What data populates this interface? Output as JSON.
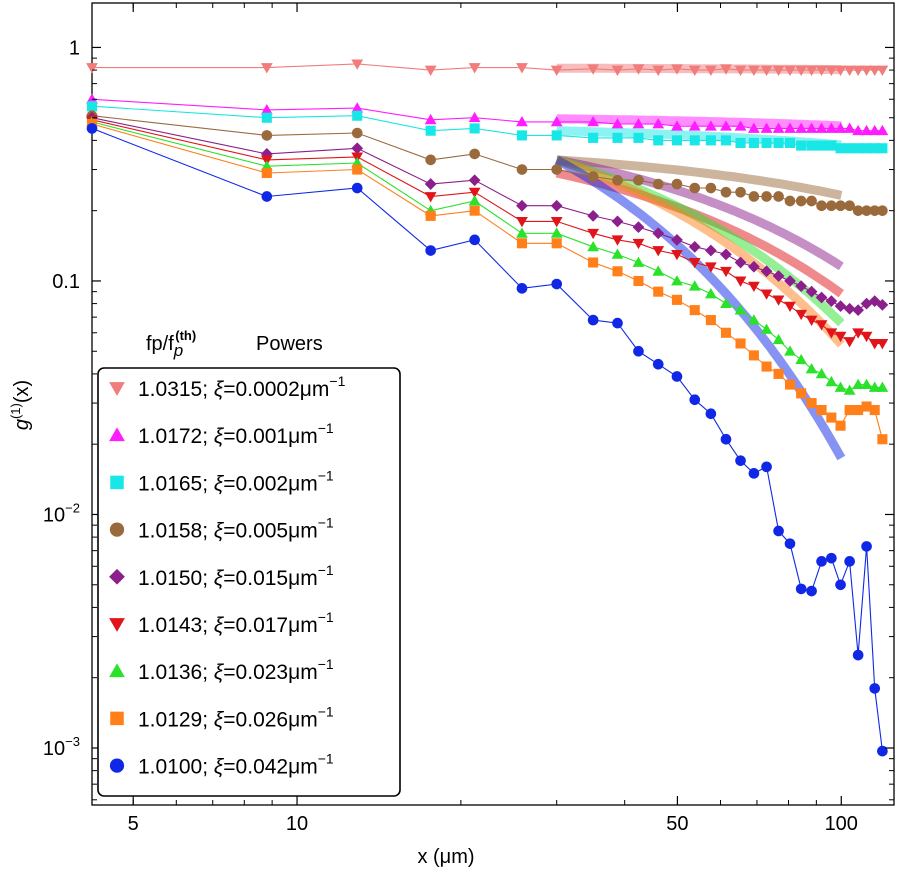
{
  "chart_data": {
    "type": "scatter",
    "title": "",
    "xlabel": "x (μm)",
    "ylabel_main": "g",
    "ylabel_sup": "(1)",
    "ylabel_tail": "(x)",
    "xscale": "log",
    "yscale": "log",
    "xlim": [
      4.2,
      125
    ],
    "ylim": [
      0.00057,
      1.55
    ],
    "x_ticks": [
      {
        "value": 5,
        "label": "5"
      },
      {
        "value": 10,
        "label": "10"
      },
      {
        "value": 50,
        "label": "50"
      },
      {
        "value": 100,
        "label": "100"
      }
    ],
    "y_ticks": [
      {
        "value": 1,
        "base": "1",
        "exp": ""
      },
      {
        "value": 0.1,
        "base": "0.1",
        "exp": ""
      },
      {
        "value": 0.01,
        "base": "10",
        "exp": "−2"
      },
      {
        "value": 0.001,
        "base": "10",
        "exp": "−3"
      }
    ],
    "legend": {
      "header_col1": "fp/f",
      "header_sub": "p",
      "header_sup": "(th)",
      "header_col2": "Powers",
      "placement": "bottom-left"
    },
    "x": [
      4.2,
      8.8,
      12.9,
      17.6,
      21.2,
      25.9,
      30.0,
      35.0,
      38.8,
      42.4,
      46.1,
      49.9,
      53.8,
      57.6,
      61.4,
      65.3,
      69.1,
      72.9,
      76.7,
      80.5,
      84.4,
      88.2,
      92.0,
      95.9,
      99.7,
      103.6,
      107.4,
      111.3,
      115.2,
      119.0
    ],
    "series": [
      {
        "name": "1.0315",
        "label": "1.0315; ξ=0.0002μm",
        "exp": "−1",
        "color": "#f07c7c",
        "marker": "triangle-down",
        "fit_color": "#f07c7c",
        "fit_xi": 0.0002,
        "fit_a": 0.815,
        "values": [
          0.82,
          0.82,
          0.85,
          0.8,
          0.82,
          0.82,
          0.8,
          0.81,
          0.8,
          0.81,
          0.8,
          0.81,
          0.8,
          0.8,
          0.81,
          0.8,
          0.8,
          0.8,
          0.8,
          0.8,
          0.8,
          0.8,
          0.8,
          0.8,
          0.8,
          0.8,
          0.8,
          0.8,
          0.8,
          0.8
        ]
      },
      {
        "name": "1.0172",
        "label": "1.0172; ξ=0.001μm",
        "exp": "−1",
        "color": "#ff1cff",
        "marker": "triangle-up",
        "fit_color": "#ff1cff",
        "fit_xi": 0.001,
        "fit_a": 0.495,
        "values": [
          0.6,
          0.54,
          0.55,
          0.49,
          0.5,
          0.48,
          0.48,
          0.48,
          0.47,
          0.47,
          0.47,
          0.46,
          0.46,
          0.46,
          0.46,
          0.46,
          0.45,
          0.45,
          0.45,
          0.45,
          0.45,
          0.45,
          0.45,
          0.45,
          0.45,
          0.45,
          0.44,
          0.44,
          0.44,
          0.44
        ]
      },
      {
        "name": "1.0165",
        "label": "1.0165; ξ=0.002μm",
        "exp": "−1",
        "color": "#19e6e6",
        "marker": "square",
        "fit_color": "#19e6e6",
        "fit_xi": 0.002,
        "fit_a": 0.44,
        "values": [
          0.56,
          0.5,
          0.51,
          0.44,
          0.45,
          0.42,
          0.42,
          0.41,
          0.41,
          0.41,
          0.4,
          0.4,
          0.4,
          0.4,
          0.4,
          0.39,
          0.39,
          0.39,
          0.39,
          0.39,
          0.38,
          0.38,
          0.38,
          0.38,
          0.37,
          0.37,
          0.37,
          0.37,
          0.37,
          0.37
        ]
      },
      {
        "name": "1.0158",
        "label": "1.0158; ξ=0.005μm",
        "exp": "−1",
        "color": "#9b6a3c",
        "marker": "circle",
        "fit_color": "#9b6a3c",
        "fit_xi": 0.005,
        "fit_a": 0.33,
        "values": [
          0.51,
          0.42,
          0.43,
          0.33,
          0.35,
          0.3,
          0.3,
          0.28,
          0.27,
          0.27,
          0.26,
          0.26,
          0.25,
          0.25,
          0.24,
          0.24,
          0.23,
          0.23,
          0.23,
          0.22,
          0.22,
          0.22,
          0.21,
          0.21,
          0.21,
          0.21,
          0.2,
          0.2,
          0.2,
          0.2
        ]
      },
      {
        "name": "1.0150",
        "label": "1.0150; ξ=0.015μm",
        "exp": "−1",
        "color": "#8b1f8b",
        "marker": "diamond",
        "fit_color": "#8b1f8b",
        "fit_xi": 0.015,
        "fit_a": 0.33,
        "values": [
          0.5,
          0.35,
          0.37,
          0.26,
          0.27,
          0.21,
          0.21,
          0.19,
          0.18,
          0.17,
          0.16,
          0.15,
          0.14,
          0.135,
          0.13,
          0.12,
          0.115,
          0.11,
          0.105,
          0.1,
          0.095,
          0.09,
          0.085,
          0.082,
          0.078,
          0.076,
          0.075,
          0.08,
          0.082,
          0.079
        ]
      },
      {
        "name": "1.0143",
        "label": "1.0143; ξ=0.017μm",
        "exp": "−1",
        "color": "#e0151a",
        "marker": "triangle-down",
        "fit_color": "#e0151a",
        "fit_xi": 0.017,
        "fit_a": 0.29,
        "values": [
          0.49,
          0.33,
          0.34,
          0.23,
          0.24,
          0.18,
          0.18,
          0.16,
          0.15,
          0.145,
          0.135,
          0.13,
          0.12,
          0.115,
          0.11,
          0.1,
          0.095,
          0.088,
          0.083,
          0.078,
          0.072,
          0.068,
          0.065,
          0.06,
          0.058,
          0.055,
          0.06,
          0.058,
          0.054,
          0.054
        ]
      },
      {
        "name": "1.0136",
        "label": "1.0136; ξ=0.023μm",
        "exp": "−1",
        "color": "#2be22b",
        "marker": "triangle-up",
        "fit_color": "#2be22b",
        "fit_xi": 0.023,
        "fit_a": 0.33,
        "values": [
          0.48,
          0.31,
          0.32,
          0.2,
          0.22,
          0.16,
          0.16,
          0.14,
          0.13,
          0.12,
          0.11,
          0.1,
          0.095,
          0.088,
          0.08,
          0.075,
          0.068,
          0.062,
          0.056,
          0.05,
          0.046,
          0.042,
          0.04,
          0.037,
          0.035,
          0.034,
          0.036,
          0.036,
          0.035,
          0.035
        ]
      },
      {
        "name": "1.0129",
        "label": "1.0129; ξ=0.026μm",
        "exp": "−1",
        "color": "#ff7f1a",
        "marker": "square",
        "fit_color": "#ff7f1a",
        "fit_xi": 0.026,
        "fit_a": 0.33,
        "values": [
          0.47,
          0.29,
          0.3,
          0.19,
          0.2,
          0.145,
          0.145,
          0.12,
          0.11,
          0.1,
          0.09,
          0.083,
          0.075,
          0.068,
          0.06,
          0.054,
          0.048,
          0.043,
          0.04,
          0.036,
          0.033,
          0.03,
          0.028,
          0.026,
          0.024,
          0.028,
          0.028,
          0.029,
          0.028,
          0.021
        ]
      },
      {
        "name": "1.0100",
        "label": "1.0100; ξ=0.042μm",
        "exp": "−1",
        "color": "#1028e6",
        "marker": "circle",
        "fit_color": "#1028e6",
        "fit_xi": 0.042,
        "fit_a": 0.33,
        "values": [
          0.45,
          0.23,
          0.25,
          0.135,
          0.15,
          0.093,
          0.097,
          0.068,
          0.066,
          0.05,
          0.044,
          0.039,
          0.031,
          0.027,
          0.021,
          0.017,
          0.015,
          0.016,
          0.0085,
          0.0075,
          0.0048,
          0.0047,
          0.0063,
          0.0065,
          0.005,
          0.0063,
          0.0025,
          0.0073,
          0.0018,
          0.00097
        ]
      }
    ]
  }
}
